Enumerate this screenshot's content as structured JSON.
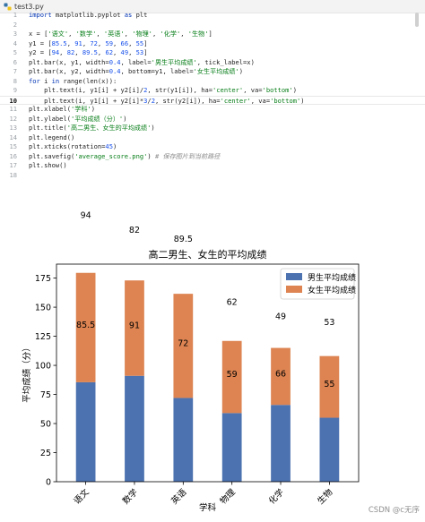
{
  "editor": {
    "tab_label": "test3.py",
    "tab_icon": "python-file-icon",
    "lines": [
      {
        "n": "1",
        "html": "<span class='kw'>import</span> matplotlib.pyplot <span class='kw'>as</span> plt"
      },
      {
        "n": "2",
        "html": ""
      },
      {
        "n": "3",
        "html": "x = [<span class='str'>'语文'</span>, <span class='str'>'数学'</span>, <span class='str'>'英语'</span>, <span class='str'>'物理'</span>, <span class='str'>'化学'</span>, <span class='str'>'生物'</span>]"
      },
      {
        "n": "4",
        "html": "y1 = [<span class='num'>85.5</span>, <span class='num'>91</span>, <span class='num'>72</span>, <span class='num'>59</span>, <span class='num'>66</span>, <span class='num'>55</span>]"
      },
      {
        "n": "5",
        "html": "y2 = [<span class='num'>94</span>, <span class='num'>82</span>, <span class='num'>89.5</span>, <span class='num'>62</span>, <span class='num'>49</span>, <span class='num'>53</span>]"
      },
      {
        "n": "6",
        "html": "plt.bar(x, y1, width=<span class='num'>0.4</span>, label=<span class='str'>'男生平均成绩'</span>, tick_label=x)"
      },
      {
        "n": "7",
        "html": "plt.bar(x, y2, width=<span class='num'>0.4</span>, bottom=y1, label=<span class='str'>'女生平均成绩'</span>)"
      },
      {
        "n": "8",
        "html": "<span class='kw'>for</span> i <span class='kw'>in</span> range(len(x)):"
      },
      {
        "n": "9",
        "html": "    plt.text(i, y1[i] + y2[i]/<span class='num'>2</span>, str(y1[i]), ha=<span class='str'>'center'</span>, va=<span class='str'>'bottom'</span>)"
      },
      {
        "n": "10",
        "html": "    plt.text(i, y1[i] + y2[i]*<span class='num'>3</span>/<span class='num'>2</span>, str(y2[i]), ha=<span class='str'>'center'</span>, va=<span class='str'>'bottom'</span>)",
        "current": true
      },
      {
        "n": "11",
        "html": "plt.xlabel(<span class='str'>'学科'</span>)"
      },
      {
        "n": "12",
        "html": "plt.ylabel(<span class='str'>'平均成绩（分）'</span>)"
      },
      {
        "n": "13",
        "html": "plt.title(<span class='str'>'高二男生、女生的平均成绩'</span>)"
      },
      {
        "n": "14",
        "html": "plt.legend()"
      },
      {
        "n": "15",
        "html": "plt.xticks(rotation=<span class='num'>45</span>)"
      },
      {
        "n": "16",
        "html": "plt.savefig(<span class='str'>'average_score.png'</span>) <span class='cm'># 保存图片到当前路径</span>"
      },
      {
        "n": "17",
        "html": "plt.show()"
      },
      {
        "n": "18",
        "html": ""
      }
    ]
  },
  "chart_data": {
    "type": "bar",
    "stacked": true,
    "title": "高二男生、女生的平均成绩",
    "xlabel": "学科",
    "ylabel": "平均成绩（分）",
    "categories": [
      "语文",
      "数学",
      "英语",
      "物理",
      "化学",
      "生物"
    ],
    "series": [
      {
        "name": "男生平均成绩",
        "values": [
          85.5,
          91,
          72,
          59,
          66,
          55
        ],
        "color": "#4c72b0"
      },
      {
        "name": "女生平均成绩",
        "values": [
          94,
          82,
          89.5,
          62,
          49,
          53
        ],
        "color": "#dd8452"
      }
    ],
    "ylim": [
      0,
      187
    ],
    "yticks": [
      0,
      25,
      50,
      75,
      100,
      125,
      150,
      175
    ],
    "xtick_rotation": 45,
    "legend_position": "top-right",
    "grid": false,
    "annotations": [
      {
        "text": "85.5",
        "x": 0,
        "y": 132.5
      },
      {
        "text": "94",
        "x": 0,
        "y": 226.5
      },
      {
        "text": "91",
        "x": 1,
        "y": 132
      },
      {
        "text": "82",
        "x": 1,
        "y": 214
      },
      {
        "text": "72",
        "x": 2,
        "y": 116.75
      },
      {
        "text": "89.5",
        "x": 2,
        "y": 206.25
      },
      {
        "text": "59",
        "x": 3,
        "y": 90
      },
      {
        "text": "62",
        "x": 3,
        "y": 152
      },
      {
        "text": "66",
        "x": 4,
        "y": 90.5
      },
      {
        "text": "49",
        "x": 4,
        "y": 139.5
      },
      {
        "text": "55",
        "x": 5,
        "y": 81.5
      },
      {
        "text": "53",
        "x": 5,
        "y": 134.5
      }
    ]
  },
  "watermark": "CSDN @c无序"
}
